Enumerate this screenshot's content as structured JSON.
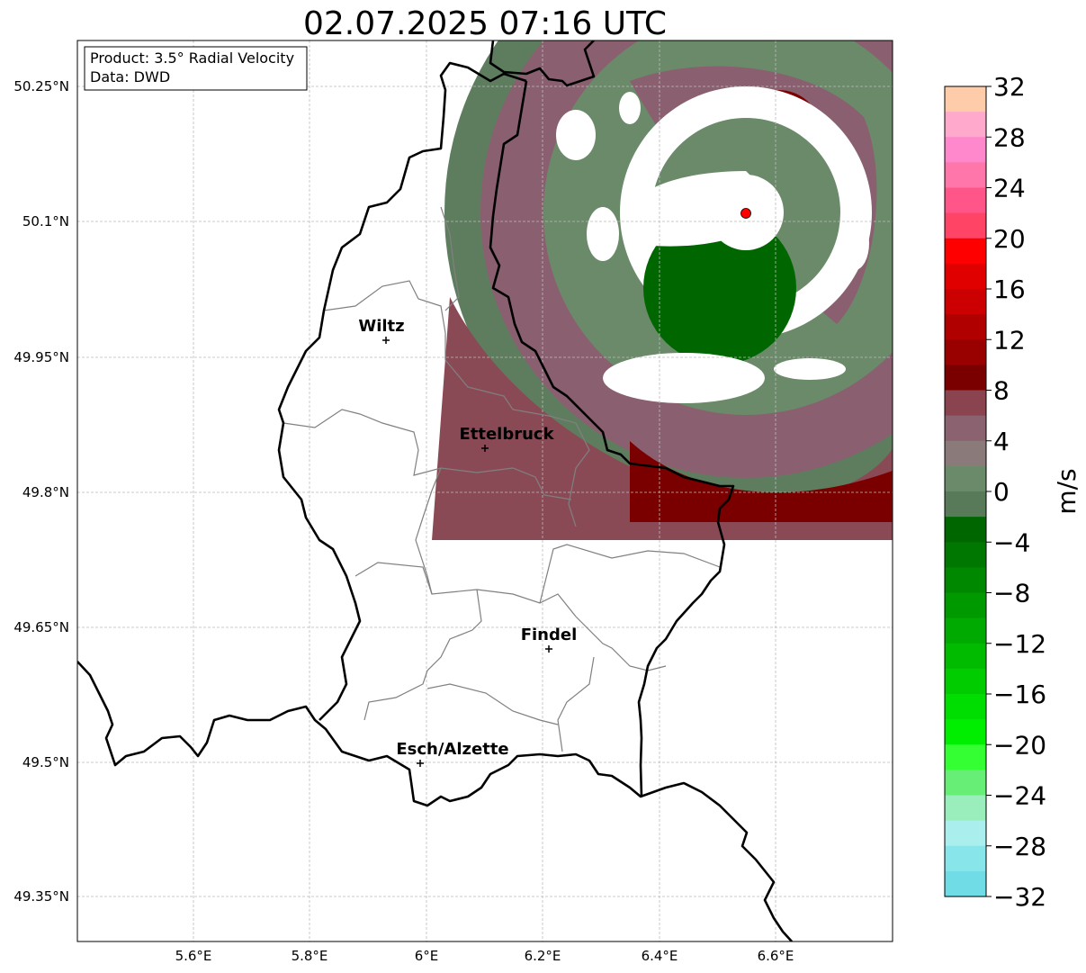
{
  "title": "02.07.2025 07:16 UTC",
  "info": {
    "line1": "Product: 3.5° Radial Velocity",
    "line2": "Data: DWD"
  },
  "axes": {
    "lat_ticks": [
      "50.25°N",
      "50.1°N",
      "49.95°N",
      "49.8°N",
      "49.65°N",
      "49.5°N",
      "49.35°N"
    ],
    "lon_ticks": [
      "5.6°E",
      "5.8°E",
      "6°E",
      "6.2°E",
      "6.4°E",
      "6.6°E"
    ],
    "grid": true
  },
  "cities": [
    {
      "name": "Wiltz",
      "lon": 5.93,
      "lat": 49.97
    },
    {
      "name": "Ettelbruck",
      "lon": 6.1,
      "lat": 49.85
    },
    {
      "name": "Findel",
      "lon": 6.21,
      "lat": 49.63
    },
    {
      "name": "Esch/Alzette",
      "lon": 5.99,
      "lat": 49.5
    }
  ],
  "radar_site": {
    "lon": 6.55,
    "lat": 50.11,
    "color": "#ff0000"
  },
  "colorbar": {
    "label": "m/s",
    "min": -32,
    "max": 32,
    "tick_labels": [
      "32",
      "28",
      "24",
      "20",
      "16",
      "12",
      "8",
      "4",
      "0",
      "−4",
      "−8",
      "−12",
      "−16",
      "−20",
      "−24",
      "−28",
      "−32"
    ],
    "colors_top_to_bottom": [
      "#ffccaa",
      "#ffaacc",
      "#ff88cc",
      "#ff77aa",
      "#ff5588",
      "#ff4466",
      "#ff0000",
      "#e00000",
      "#cc0000",
      "#b00000",
      "#990000",
      "#7a0000",
      "#8a4450",
      "#8a6270",
      "#8a7a7a",
      "#6a8a6a",
      "#587a58",
      "#006600",
      "#007700",
      "#008800",
      "#009900",
      "#00aa00",
      "#00bb00",
      "#00cc00",
      "#00dd00",
      "#00ee00",
      "#33ff33",
      "#66ee77",
      "#99eebb",
      "#aaeeee",
      "#88e6ea",
      "#70dde6"
    ]
  }
}
